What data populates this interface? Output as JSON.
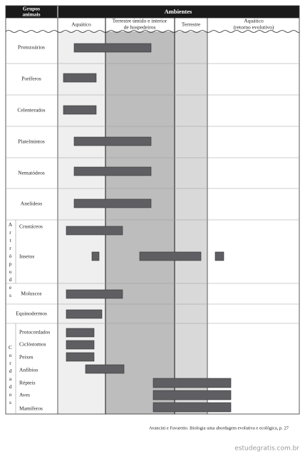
{
  "header": {
    "group_column": [
      "Grupos",
      "animais"
    ],
    "title": "Ambientes",
    "columns": [
      [
        "Aquático"
      ],
      [
        "Terrestre úmido e interior",
        "de hospedeiros"
      ],
      [
        "Terrestre"
      ],
      [
        "Aquático",
        "(retorno evolutivo)"
      ]
    ]
  },
  "groups": [
    {
      "label": "Protozoários"
    },
    {
      "label": "Poríferos"
    },
    {
      "label": "Celenterados"
    },
    {
      "label": "Platelmintos"
    },
    {
      "label": "Nematódeos"
    },
    {
      "label": "Anelídeos"
    },
    {
      "label": "Artrópodes",
      "subgroups": [
        "Crustáceos",
        "Insetos"
      ]
    },
    {
      "label": "Moluscos"
    },
    {
      "label": "Equinodermos"
    },
    {
      "label": "Cordados",
      "subgroups": [
        "Protocordados",
        "Ciclóstomos",
        "Peixes",
        "Anfíbios",
        "Répteis",
        "Aves",
        "Mamíferos"
      ]
    }
  ],
  "caption": "Avancini e Favaretto. Biologia uma abordagem evolutiva e ecológica, p. 27",
  "watermark": "estudegratis.com.br"
}
